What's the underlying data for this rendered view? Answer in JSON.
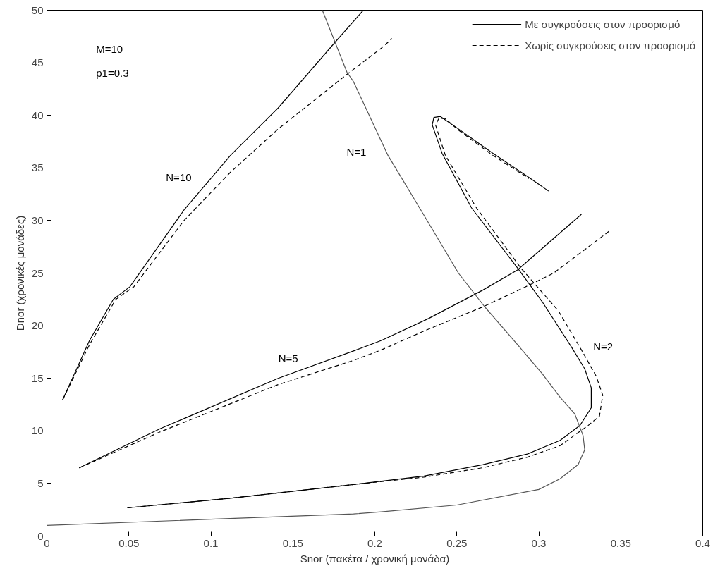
{
  "chart_data": {
    "type": "line",
    "xlabel": "Snor (πακέτα / χρονική μονάδα)",
    "ylabel": "Dnor (χρονικές μονάδες)",
    "xlim": [
      0,
      0.4
    ],
    "xticks": [
      0,
      0.05,
      0.1,
      0.15,
      0.2,
      0.25,
      0.3,
      0.35,
      0.4
    ],
    "ylim": [
      0,
      50
    ],
    "yticks": [
      0,
      5,
      10,
      15,
      20,
      25,
      30,
      35,
      40,
      45,
      50
    ],
    "grid": false,
    "legend": "top right",
    "marker": "none",
    "annotations": [
      "M=10",
      "p1=0.3",
      "N=10",
      "N=1",
      "N=5",
      "N=2"
    ],
    "series": [
      {
        "name": "Με συγκρούσεις στον προορισμό",
        "color": "#000000",
        "line_style": "solid",
        "x": [
          0.0096,
          0.026,
          0.0405,
          0.0506,
          0.0836,
          0.112,
          0.141,
          0.176,
          0.193
        ],
        "values": [
          12.95,
          18.6,
          22.5,
          23.7,
          31.0,
          36.2,
          40.7,
          47.0,
          50
        ]
      },
      {
        "name": "Χωρίς συγκρούσεις στον προορισμό",
        "color": "#000000",
        "line_style": "dashed",
        "x": [
          0.0096,
          0.026,
          0.042,
          0.053,
          0.0836,
          0.112,
          0.141,
          0.183,
          0.204,
          0.2105
        ],
        "values": [
          12.95,
          18.2,
          22.5,
          23.7,
          30.0,
          34.6,
          38.7,
          43.9,
          46.4,
          47.3
        ]
      },
      {
        "color": "#000000",
        "line_style": "solid",
        "x": [
          0.0197,
          0.069,
          0.141,
          0.187,
          0.204,
          0.233,
          0.266,
          0.287,
          0.326
        ],
        "values": [
          6.48,
          10.2,
          15.0,
          17.6,
          18.6,
          20.7,
          23.4,
          25.3,
          30.6
        ]
      },
      {
        "color": "#000000",
        "line_style": "dashed",
        "x": [
          0.0197,
          0.069,
          0.141,
          0.187,
          0.204,
          0.23,
          0.266,
          0.296,
          0.309,
          0.343
        ],
        "values": [
          6.48,
          9.9,
          14.4,
          16.7,
          17.7,
          19.5,
          21.8,
          24.0,
          25.0,
          29.0
        ]
      },
      {
        "color": "#000000",
        "line_style": "solid",
        "x": [
          0.0491,
          0.112,
          0.187,
          0.23,
          0.266,
          0.293,
          0.313,
          0.325,
          0.332,
          0.332,
          0.328,
          0.32,
          0.302,
          0.287,
          0.259,
          0.241,
          0.235,
          0.236,
          0.24,
          0.251,
          0.272,
          0.294,
          0.306
        ],
        "values": [
          2.68,
          3.6,
          4.9,
          5.7,
          6.8,
          7.8,
          9.1,
          10.5,
          12.2,
          14.1,
          15.9,
          17.95,
          22.3,
          25.5,
          31.2,
          36.4,
          39.1,
          39.8,
          39.9,
          38.7,
          36.4,
          34.1,
          32.8
        ]
      },
      {
        "color": "#000000",
        "line_style": "dashed",
        "x": [
          0.0491,
          0.112,
          0.187,
          0.23,
          0.266,
          0.293,
          0.313,
          0.33,
          0.337,
          0.339,
          0.335,
          0.326,
          0.312,
          0.289,
          0.262,
          0.243,
          0.237,
          0.239,
          0.243,
          0.251,
          0.272,
          0.294
        ],
        "values": [
          2.68,
          3.6,
          4.9,
          5.6,
          6.5,
          7.5,
          8.6,
          10.5,
          11.4,
          13.4,
          15.2,
          17.7,
          21.4,
          25.5,
          31.2,
          36.2,
          39.1,
          39.7,
          39.7,
          38.6,
          36.2,
          34.0
        ]
      },
      {
        "color": "#555555",
        "line_style": "solid",
        "x": [
          0,
          0.1,
          0.187,
          0.204,
          0.25,
          0.3,
          0.313,
          0.324,
          0.328,
          0.327,
          0.322,
          0.313,
          0.302,
          0.287,
          0.267,
          0.251,
          0.23,
          0.208,
          0.187,
          0.183,
          0.168
        ],
        "values": [
          1.02,
          1.6,
          2.1,
          2.3,
          2.95,
          4.43,
          5.45,
          6.8,
          8.2,
          9.55,
          11.6,
          13.2,
          15.45,
          18.2,
          21.8,
          25.0,
          30.5,
          36.2,
          43.2,
          44.1,
          50
        ]
      }
    ]
  }
}
